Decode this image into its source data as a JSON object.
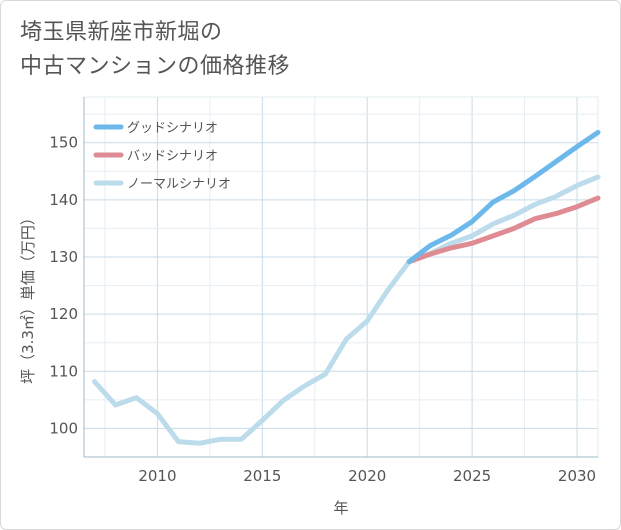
{
  "title_lines": [
    "埼玉県新座市新堀の",
    "中古マンションの価格推移"
  ],
  "chart_data": {
    "type": "line",
    "title": "埼玉県新座市新堀の中古マンションの価格推移",
    "xlabel": "年",
    "ylabel": "坪（3.3㎡）単価（万円）",
    "xlim": [
      2006.5,
      2031
    ],
    "ylim": [
      95,
      158
    ],
    "xticks": [
      2010,
      2015,
      2020,
      2025,
      2030
    ],
    "yticks": [
      100,
      110,
      120,
      130,
      140,
      150
    ],
    "legend_position": "top-left",
    "series": [
      {
        "name": "グッドシナリオ",
        "color": "#6cb8ea",
        "x": [
          2022,
          2023,
          2024,
          2025,
          2026,
          2027,
          2028,
          2029,
          2030,
          2031
        ],
        "y": [
          129.2,
          132.0,
          133.8,
          136.2,
          139.6,
          141.6,
          144.1,
          146.7,
          149.3,
          151.8
        ]
      },
      {
        "name": "バッドシナリオ",
        "color": "#de8b93",
        "x": [
          2022,
          2023,
          2024,
          2025,
          2026,
          2027,
          2028,
          2029,
          2030,
          2031
        ],
        "y": [
          129.2,
          130.5,
          131.6,
          132.4,
          133.7,
          135.0,
          136.7,
          137.6,
          138.8,
          140.3
        ]
      },
      {
        "name": "ノーマルシナリオ",
        "color": "#bcdcec",
        "x": [
          2007,
          2008,
          2009,
          2010,
          2011,
          2012,
          2013,
          2014,
          2015,
          2016,
          2017,
          2018,
          2019,
          2020,
          2021,
          2022,
          2023,
          2024,
          2025,
          2026,
          2027,
          2028,
          2029,
          2030,
          2031
        ],
        "y": [
          108.2,
          104.1,
          105.4,
          102.6,
          97.7,
          97.4,
          98.1,
          98.1,
          101.4,
          104.9,
          107.4,
          109.5,
          115.6,
          118.8,
          124.3,
          129.2,
          130.6,
          132.4,
          133.7,
          135.8,
          137.3,
          139.2,
          140.6,
          142.5,
          144.0
        ]
      }
    ]
  }
}
